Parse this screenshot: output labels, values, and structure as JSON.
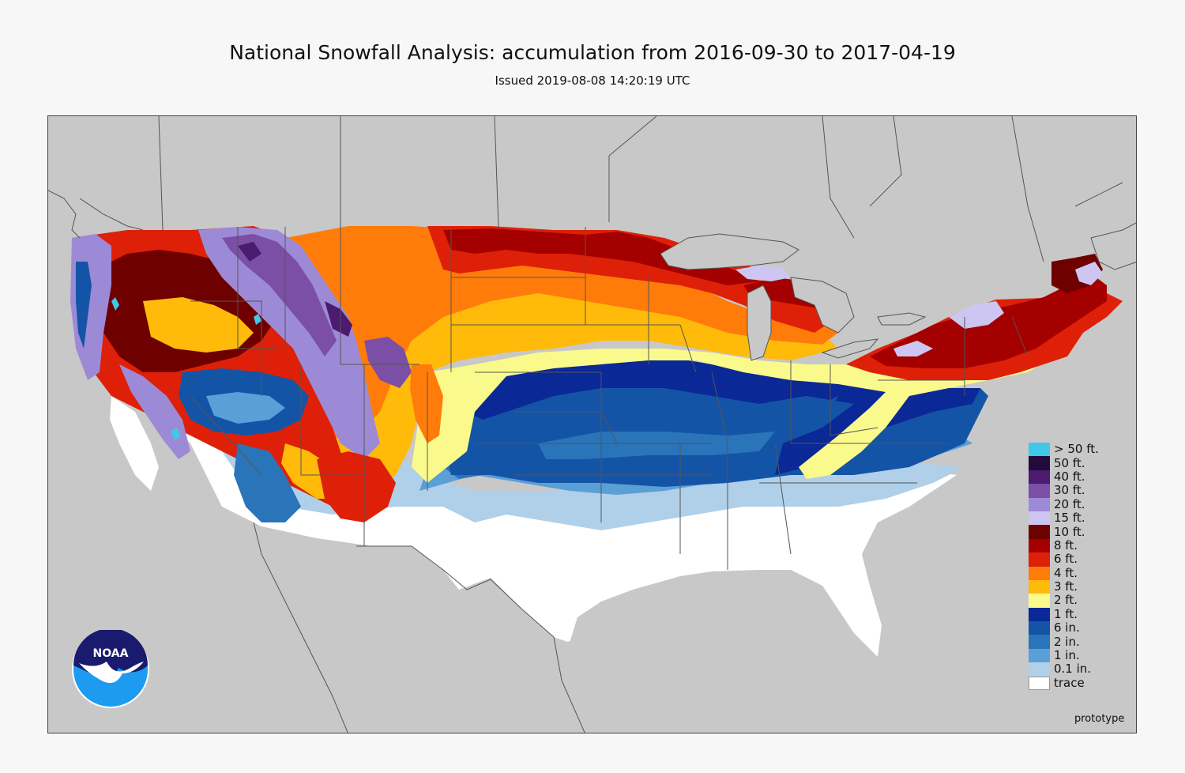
{
  "header": {
    "title": "National Snowfall Analysis: accumulation from 2016-09-30 to 2017-04-19",
    "issued": "Issued 2019-08-08 14:20:19 UTC"
  },
  "legend": {
    "items": [
      {
        "label": "> 50 ft.",
        "color": "#41c8e8"
      },
      {
        "label": "50 ft.",
        "color": "#220a3a"
      },
      {
        "label": "40 ft.",
        "color": "#4c1a6e"
      },
      {
        "label": "30 ft.",
        "color": "#7b4fa6"
      },
      {
        "label": "20 ft.",
        "color": "#9d8ad6"
      },
      {
        "label": "15 ft.",
        "color": "#cdc6f2"
      },
      {
        "label": "10 ft.",
        "color": "#6e0000"
      },
      {
        "label": "8 ft.",
        "color": "#a40000"
      },
      {
        "label": "6 ft.",
        "color": "#de2008"
      },
      {
        "label": "4 ft.",
        "color": "#ff7c0a"
      },
      {
        "label": "3 ft.",
        "color": "#ffba0a"
      },
      {
        "label": "2 ft.",
        "color": "#fafa8c"
      },
      {
        "label": "1 ft.",
        "color": "#0a2896"
      },
      {
        "label": "6 in.",
        "color": "#1454a6"
      },
      {
        "label": "2 in.",
        "color": "#2a74ba"
      },
      {
        "label": "1 in.",
        "color": "#5a9fd6"
      },
      {
        "label": "0.1 in.",
        "color": "#b0cfe8"
      },
      {
        "label": "trace",
        "color": "#ffffff"
      }
    ]
  },
  "footer": {
    "prototype_text": "prototype"
  },
  "logo": {
    "text": "NOAA"
  },
  "map": {
    "background_color": "#c8c8c8",
    "line_color": "#555555"
  }
}
